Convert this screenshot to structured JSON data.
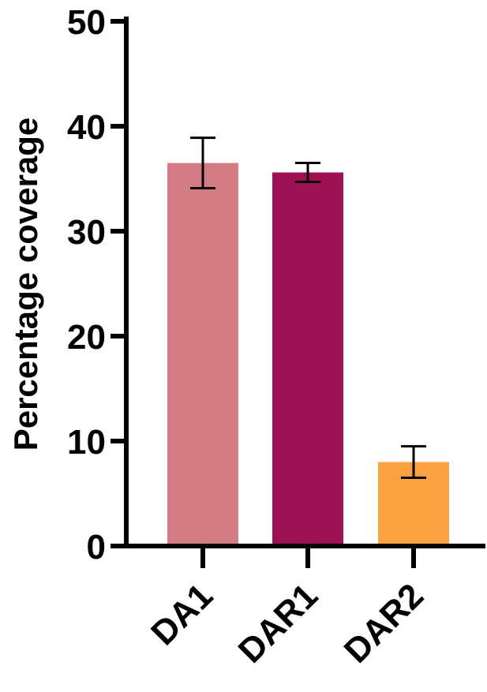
{
  "chart_data": {
    "type": "bar",
    "title": "",
    "xlabel": "",
    "ylabel": "Percentage coverage",
    "ylim": [
      0,
      50
    ],
    "yticks": [
      0,
      10,
      20,
      30,
      40,
      50
    ],
    "grid": false,
    "legend": "none",
    "categories": [
      "DA1",
      "DAR1",
      "DAR2"
    ],
    "values": [
      36.5,
      35.6,
      8.0
    ],
    "error": [
      {
        "low": 34.1,
        "high": 38.9
      },
      {
        "low": 34.7,
        "high": 36.5
      },
      {
        "low": 6.5,
        "high": 9.5
      }
    ],
    "colors": [
      "#d47c83",
      "#9e1153",
      "#fba141"
    ]
  }
}
